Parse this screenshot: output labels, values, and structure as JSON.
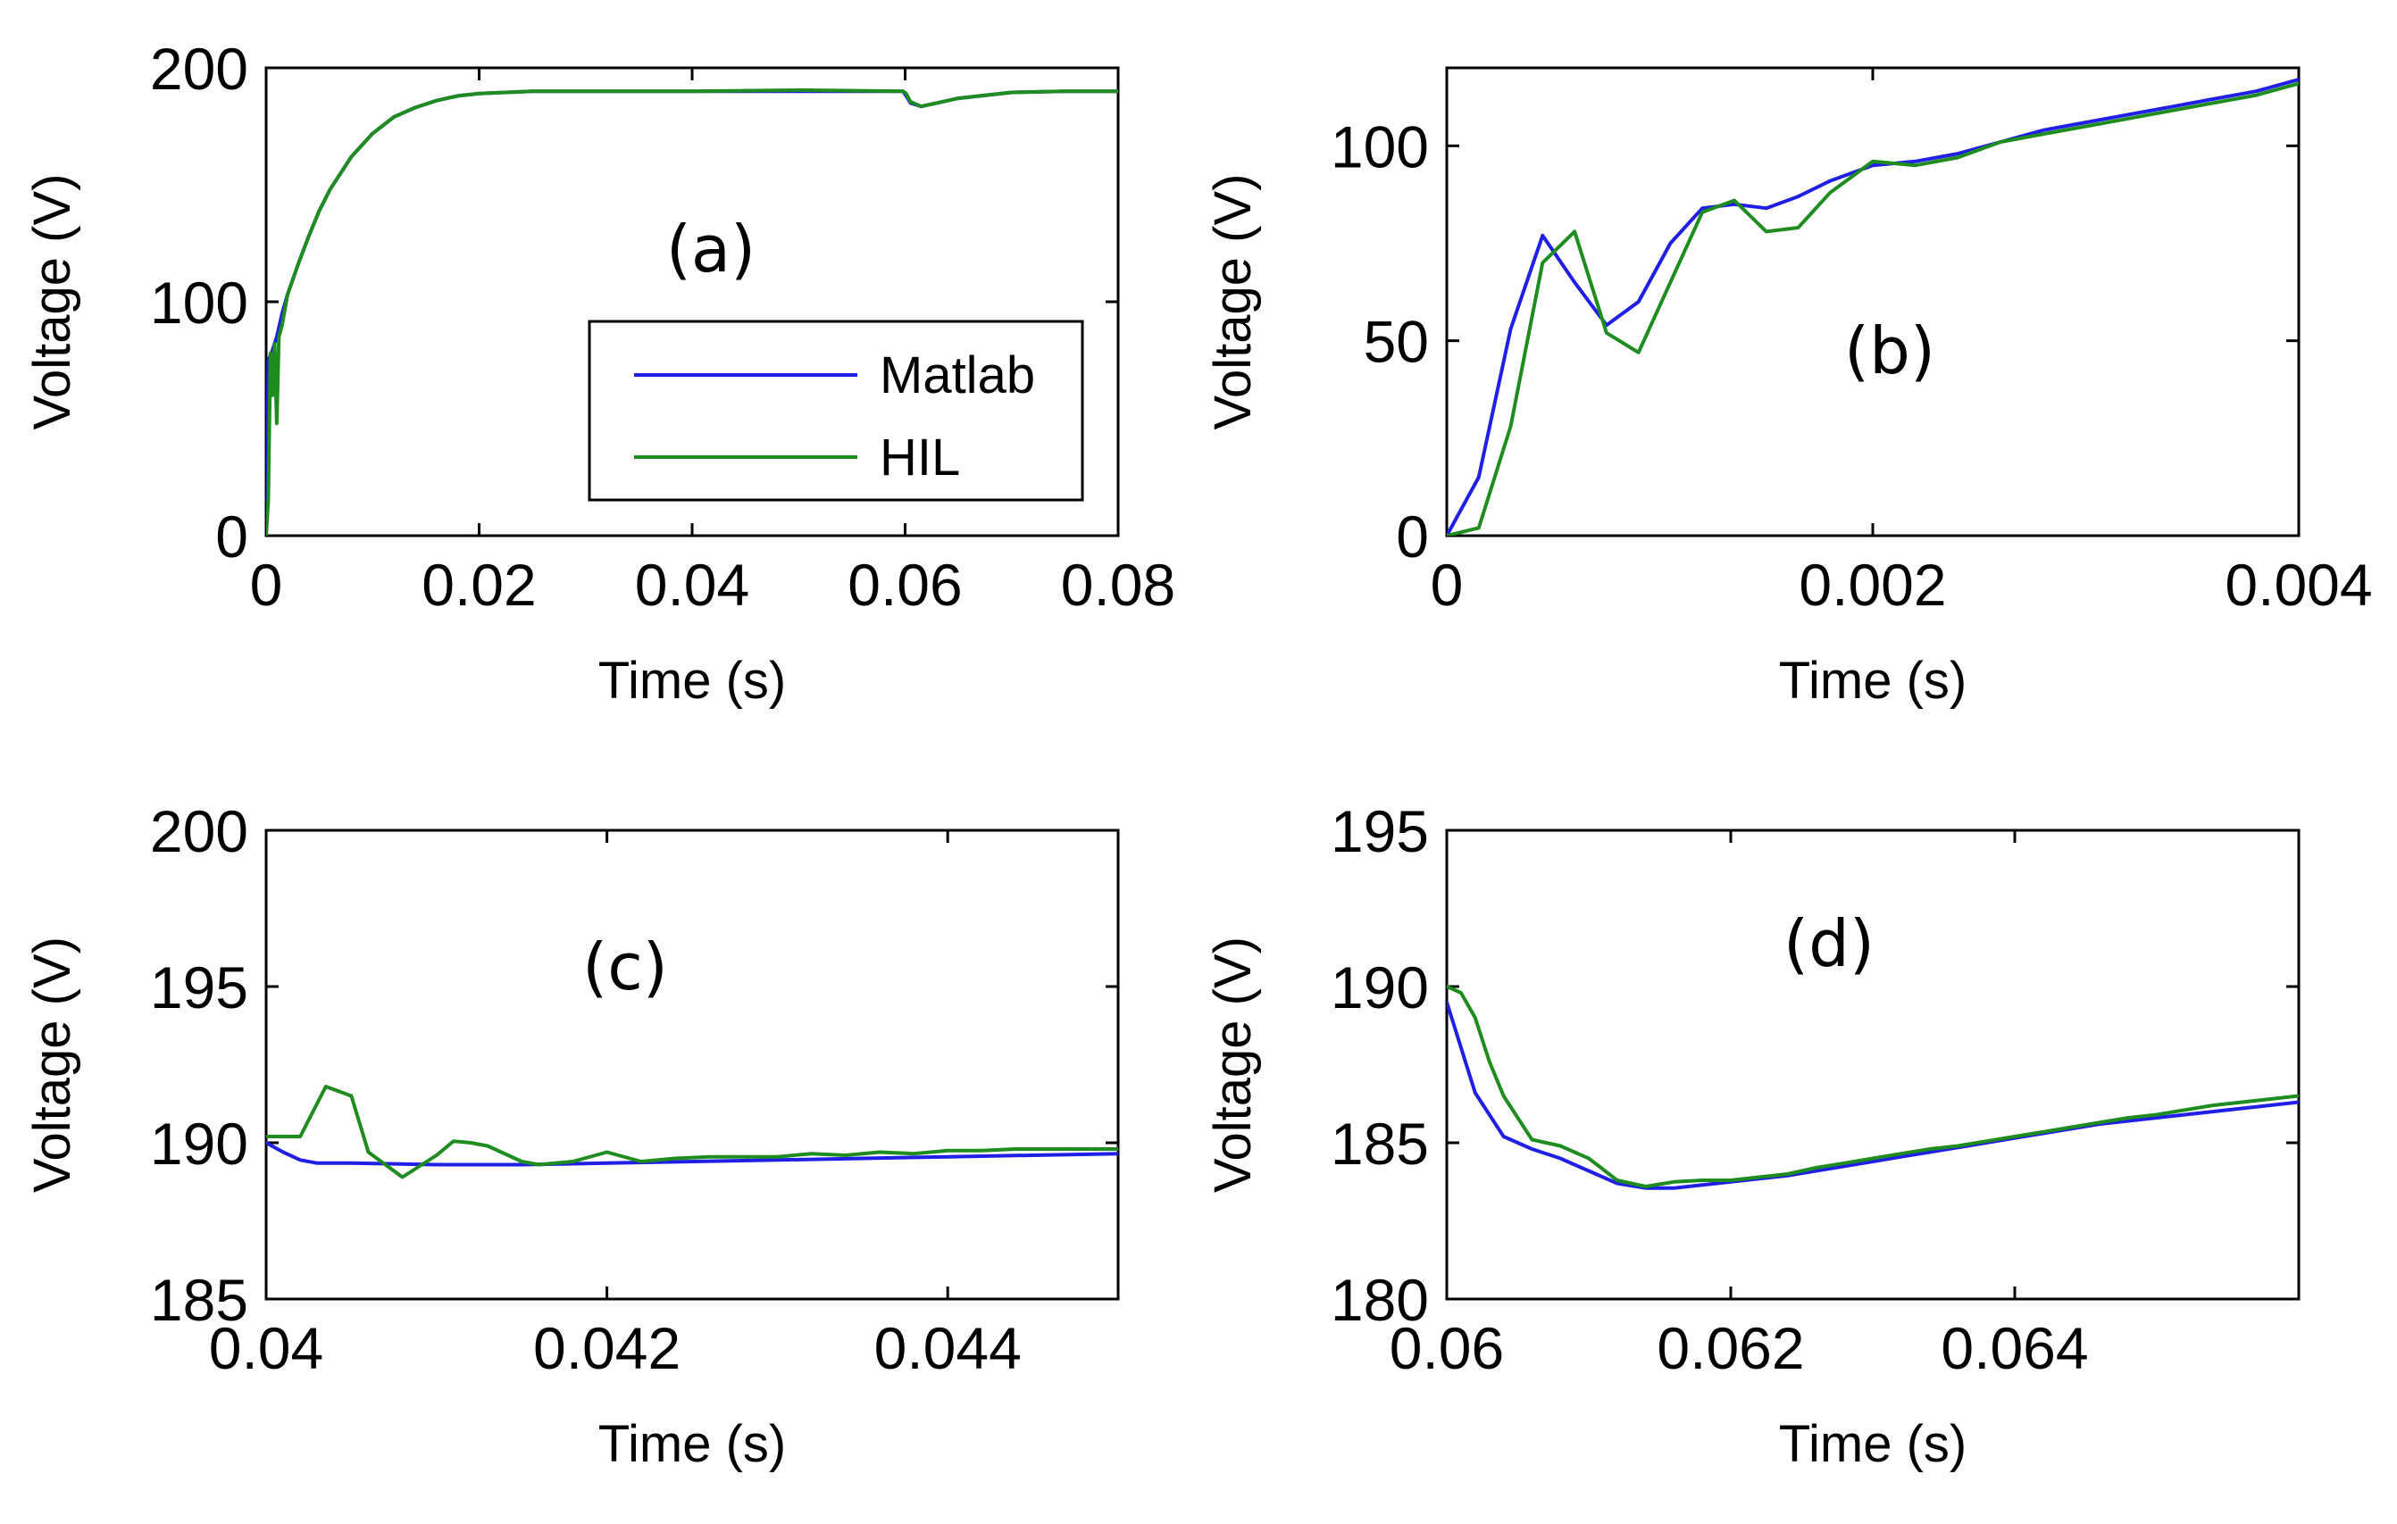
{
  "colors": {
    "matlab": "#1f1fe6",
    "hil": "#1e8c1e"
  },
  "chart_data": [
    {
      "type": "line",
      "panel_label": "(a)",
      "xlabel": "Time (s)",
      "ylabel": "Voltage (V)",
      "xlim": [
        0,
        0.08
      ],
      "ylim": [
        0,
        200
      ],
      "xticks": [
        0,
        0.02,
        0.04,
        0.06,
        0.08
      ],
      "xtick_labels": [
        "0",
        "0.02",
        "0.04",
        "0.06",
        "0.08"
      ],
      "yticks": [
        0,
        100,
        200
      ],
      "ytick_labels": [
        "0",
        "100",
        "200"
      ],
      "legend": {
        "position": "lower-right",
        "entries": [
          "Matlab",
          "HIL"
        ]
      },
      "series": [
        {
          "name": "Matlab",
          "color_key": "matlab",
          "x": [
            0,
            0.0002,
            0.0005,
            0.001,
            0.0015,
            0.002,
            0.003,
            0.004,
            0.005,
            0.006,
            0.008,
            0.01,
            0.012,
            0.014,
            0.016,
            0.018,
            0.02,
            0.025,
            0.03,
            0.04,
            0.05,
            0.0598,
            0.0601,
            0.0605,
            0.0615,
            0.063,
            0.065,
            0.068,
            0.07,
            0.075,
            0.08
          ],
          "y": [
            0,
            75,
            78,
            85,
            95,
            103,
            116,
            128,
            139,
            148,
            162,
            172,
            179,
            183,
            186,
            188,
            189,
            190,
            190,
            190,
            190,
            190,
            188,
            185,
            183.5,
            185,
            187,
            188.5,
            189.5,
            190,
            190
          ]
        },
        {
          "name": "HIL",
          "color_key": "hil",
          "x": [
            0,
            0.0002,
            0.0004,
            0.0006,
            0.0008,
            0.001,
            0.0012,
            0.0015,
            0.002,
            0.003,
            0.004,
            0.005,
            0.006,
            0.008,
            0.01,
            0.012,
            0.014,
            0.016,
            0.018,
            0.02,
            0.025,
            0.03,
            0.04,
            0.05,
            0.0598,
            0.0601,
            0.0605,
            0.0615,
            0.063,
            0.065,
            0.068,
            0.07,
            0.075,
            0.08
          ],
          "y": [
            0,
            15,
            78,
            60,
            82,
            48,
            85,
            90,
            103,
            116,
            128,
            139,
            148,
            162,
            172,
            179,
            183,
            186,
            188,
            189,
            190,
            190,
            190,
            190.5,
            190,
            189,
            185.5,
            183.5,
            185,
            187,
            188.5,
            189.5,
            190,
            190
          ]
        }
      ]
    },
    {
      "type": "line",
      "panel_label": "(b)",
      "xlabel": "Time (s)",
      "ylabel": "Voltage (V)",
      "xlim": [
        0,
        0.004
      ],
      "ylim": [
        0,
        120
      ],
      "xticks": [
        0,
        0.002,
        0.004
      ],
      "xtick_labels": [
        "0",
        "0.002",
        "0.004"
      ],
      "yticks": [
        0,
        50,
        100
      ],
      "ytick_labels": [
        "0",
        "50",
        "100"
      ],
      "series": [
        {
          "name": "Matlab",
          "color_key": "matlab",
          "x": [
            0,
            0.00015,
            0.0003,
            0.00045,
            0.0006,
            0.00075,
            0.0009,
            0.00105,
            0.0012,
            0.00135,
            0.0015,
            0.00165,
            0.0018,
            0.002,
            0.0022,
            0.0024,
            0.0026,
            0.0028,
            0.003,
            0.0032,
            0.0034,
            0.0036,
            0.0038,
            0.004
          ],
          "y": [
            0,
            15,
            53,
            77,
            65,
            54,
            60,
            75,
            84,
            85,
            84,
            87,
            91,
            95,
            96,
            98,
            101,
            104,
            106,
            108,
            110,
            112,
            114,
            117
          ]
        },
        {
          "name": "HIL",
          "color_key": "hil",
          "x": [
            0,
            0.00015,
            0.0003,
            0.00045,
            0.0006,
            0.00075,
            0.0009,
            0.00105,
            0.0012,
            0.00135,
            0.0015,
            0.00165,
            0.0018,
            0.002,
            0.0022,
            0.0024,
            0.0026,
            0.0028,
            0.003,
            0.0032,
            0.0034,
            0.0036,
            0.0038,
            0.004
          ],
          "y": [
            0,
            2,
            28,
            70,
            78,
            52,
            47,
            65,
            83,
            86,
            78,
            79,
            88,
            96,
            95,
            97,
            101,
            103,
            105,
            107,
            109,
            111,
            113,
            116
          ]
        }
      ]
    },
    {
      "type": "line",
      "panel_label": "(c)",
      "xlabel": "Time (s)",
      "ylabel": "Voltage (V)",
      "xlim": [
        0.04,
        0.045
      ],
      "ylim": [
        185,
        200
      ],
      "xticks": [
        0.04,
        0.042,
        0.044
      ],
      "xtick_labels": [
        "0.04",
        "0.042",
        "0.044"
      ],
      "yticks": [
        185,
        190,
        195,
        200
      ],
      "ytick_labels": [
        "185",
        "190",
        "195",
        "200"
      ],
      "series": [
        {
          "name": "Matlab",
          "color_key": "matlab",
          "x": [
            0.04,
            0.0401,
            0.0402,
            0.0403,
            0.0405,
            0.041,
            0.0415,
            0.042,
            0.043,
            0.044,
            0.045
          ],
          "y": [
            190.0,
            189.7,
            189.45,
            189.35,
            189.35,
            189.3,
            189.3,
            189.35,
            189.45,
            189.55,
            189.65
          ]
        },
        {
          "name": "HIL",
          "color_key": "hil",
          "x": [
            0.04,
            0.0402,
            0.04035,
            0.0405,
            0.0406,
            0.0408,
            0.041,
            0.0411,
            0.0412,
            0.0413,
            0.0415,
            0.0416,
            0.0418,
            0.042,
            0.0422,
            0.0424,
            0.0426,
            0.0428,
            0.043,
            0.0432,
            0.0434,
            0.0436,
            0.0438,
            0.044,
            0.0442,
            0.0444,
            0.045
          ],
          "y": [
            190.2,
            190.2,
            191.8,
            191.5,
            189.7,
            188.9,
            189.6,
            190.05,
            190.0,
            189.9,
            189.4,
            189.3,
            189.4,
            189.7,
            189.4,
            189.5,
            189.55,
            189.55,
            189.55,
            189.65,
            189.6,
            189.7,
            189.65,
            189.75,
            189.75,
            189.8,
            189.8
          ]
        }
      ]
    },
    {
      "type": "line",
      "panel_label": "(d)",
      "xlabel": "Time (s)",
      "ylabel": "Voltage (V)",
      "xlim": [
        0.06,
        0.066
      ],
      "ylim": [
        180,
        195
      ],
      "xticks": [
        0.06,
        0.062,
        0.064
      ],
      "xtick_labels": [
        "0.06",
        "0.062",
        "0.064"
      ],
      "yticks": [
        180,
        185,
        190,
        195
      ],
      "ytick_labels": [
        "180",
        "185",
        "190",
        "195"
      ],
      "series": [
        {
          "name": "Matlab",
          "color_key": "matlab",
          "x": [
            0.06,
            0.0602,
            0.0604,
            0.0606,
            0.0608,
            0.061,
            0.0612,
            0.0614,
            0.0616,
            0.0618,
            0.062,
            0.0622,
            0.0624,
            0.0626,
            0.0628,
            0.063,
            0.0632,
            0.0634,
            0.0636,
            0.0638,
            0.064,
            0.0642,
            0.0644,
            0.0646,
            0.0648,
            0.065,
            0.0652,
            0.0654,
            0.0656,
            0.0658,
            0.066
          ],
          "y": [
            189.5,
            186.6,
            185.2,
            184.8,
            184.5,
            184.1,
            183.7,
            183.55,
            183.55,
            183.65,
            183.75,
            183.85,
            183.95,
            184.1,
            184.25,
            184.4,
            184.55,
            184.7,
            184.85,
            185.0,
            185.15,
            185.3,
            185.45,
            185.6,
            185.7,
            185.8,
            185.9,
            186.0,
            186.1,
            186.2,
            186.3
          ]
        },
        {
          "name": "HIL",
          "color_key": "hil",
          "x": [
            0.06,
            0.0601,
            0.0602,
            0.0603,
            0.0604,
            0.0605,
            0.0606,
            0.0608,
            0.061,
            0.0612,
            0.0614,
            0.0616,
            0.0618,
            0.062,
            0.0622,
            0.0624,
            0.0626,
            0.0628,
            0.063,
            0.0632,
            0.0634,
            0.0636,
            0.0638,
            0.064,
            0.0642,
            0.0644,
            0.0646,
            0.0648,
            0.065,
            0.0652,
            0.0654,
            0.0656,
            0.0658,
            0.066
          ],
          "y": [
            190.0,
            189.8,
            189.0,
            187.6,
            186.5,
            185.8,
            185.1,
            184.9,
            184.5,
            183.8,
            183.6,
            183.75,
            183.8,
            183.8,
            183.9,
            184.0,
            184.2,
            184.35,
            184.5,
            184.65,
            184.8,
            184.9,
            185.05,
            185.2,
            185.35,
            185.5,
            185.65,
            185.8,
            185.9,
            186.05,
            186.2,
            186.3,
            186.4,
            186.5
          ]
        }
      ]
    }
  ]
}
